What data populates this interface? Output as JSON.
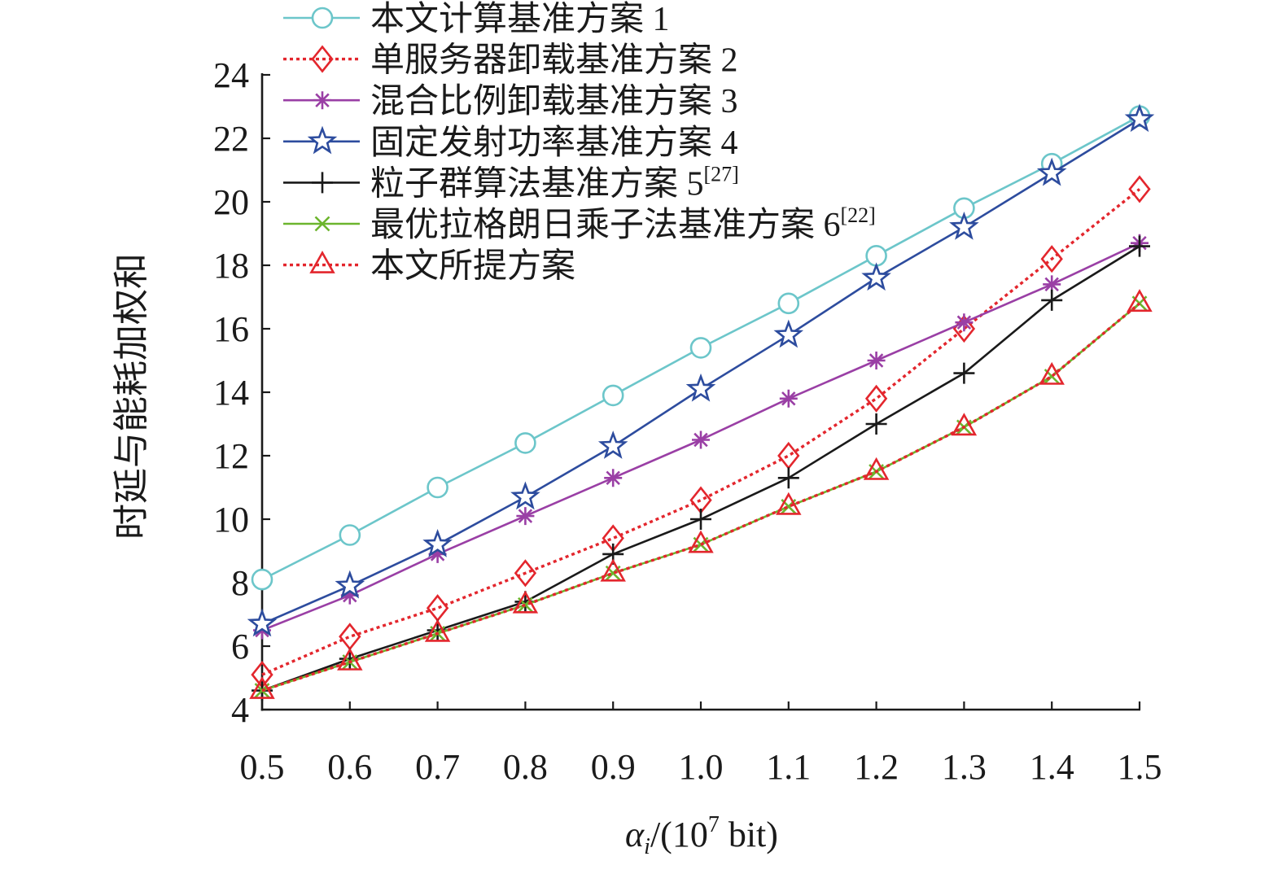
{
  "chart_data": {
    "type": "line",
    "title": "",
    "ylabel": "时延与能耗加权和",
    "xlabel": {
      "symbol": "α",
      "subscript": "i",
      "prefix": "/(10",
      "exponent": "7",
      "suffix": " bit)"
    },
    "xlim": [
      0.5,
      1.5
    ],
    "ylim": [
      4,
      24
    ],
    "x": [
      0.5,
      0.6,
      0.7,
      0.8,
      0.9,
      1.0,
      1.1,
      1.2,
      1.3,
      1.4,
      1.5
    ],
    "x_tick_labels": [
      "0.5",
      "0.6",
      "0.7",
      "0.8",
      "0.9",
      "1.0",
      "1.1",
      "1.2",
      "1.3",
      "1.4",
      "1.5"
    ],
    "y_ticks": [
      4,
      6,
      8,
      10,
      12,
      14,
      16,
      18,
      20,
      22,
      24
    ],
    "y_tick_labels": [
      "4",
      "6",
      "8",
      "10",
      "12",
      "14",
      "16",
      "18",
      "20",
      "22",
      "24"
    ],
    "grid": false,
    "legend_position": "top-left",
    "series": [
      {
        "name": "本文计算基准方案 1",
        "name_sup": "",
        "marker_icon": "circle",
        "color": "#6cc6ca",
        "dashed": false,
        "values": [
          8.1,
          9.5,
          11.0,
          12.4,
          13.9,
          15.4,
          16.8,
          18.3,
          19.8,
          21.2,
          22.7
        ]
      },
      {
        "name": "单服务器卸载基准方案 2",
        "name_sup": "",
        "marker_icon": "diamond",
        "color": "#e3262d",
        "dashed": true,
        "values": [
          5.1,
          6.3,
          7.2,
          8.3,
          9.4,
          10.6,
          12.0,
          13.8,
          16.0,
          18.2,
          20.4
        ]
      },
      {
        "name": "混合比例卸载基准方案 3",
        "name_sup": "",
        "marker_icon": "asterisk",
        "color": "#9a3fa5",
        "dashed": false,
        "values": [
          6.5,
          7.6,
          8.9,
          10.1,
          11.3,
          12.5,
          13.8,
          15.0,
          16.2,
          17.4,
          18.7
        ]
      },
      {
        "name": "固定发射功率基准方案 4",
        "name_sup": "",
        "marker_icon": "star",
        "color": "#2d4c9e",
        "dashed": false,
        "values": [
          6.7,
          7.9,
          9.2,
          10.7,
          12.3,
          14.1,
          15.8,
          17.6,
          19.2,
          20.9,
          22.6
        ]
      },
      {
        "name": "粒子群算法基准方案 5",
        "name_sup": "[27]",
        "marker_icon": "plus",
        "color": "#1a1a1a",
        "dashed": false,
        "values": [
          4.6,
          5.6,
          6.5,
          7.4,
          8.9,
          10.0,
          11.3,
          13.0,
          14.6,
          16.9,
          18.6
        ]
      },
      {
        "name": "最优拉格朗日乘子法基准方案 6",
        "name_sup": "[22]",
        "marker_icon": "cross",
        "color": "#6cb52d",
        "dashed": false,
        "values": [
          4.6,
          5.5,
          6.4,
          7.3,
          8.3,
          9.2,
          10.4,
          11.5,
          12.9,
          14.5,
          16.8
        ]
      },
      {
        "name": "本文所提方案",
        "name_sup": "",
        "marker_icon": "triangle",
        "color": "#e3262d",
        "dashed": true,
        "values": [
          4.6,
          5.5,
          6.4,
          7.3,
          8.3,
          9.2,
          10.4,
          11.5,
          12.9,
          14.5,
          16.8
        ]
      }
    ]
  }
}
